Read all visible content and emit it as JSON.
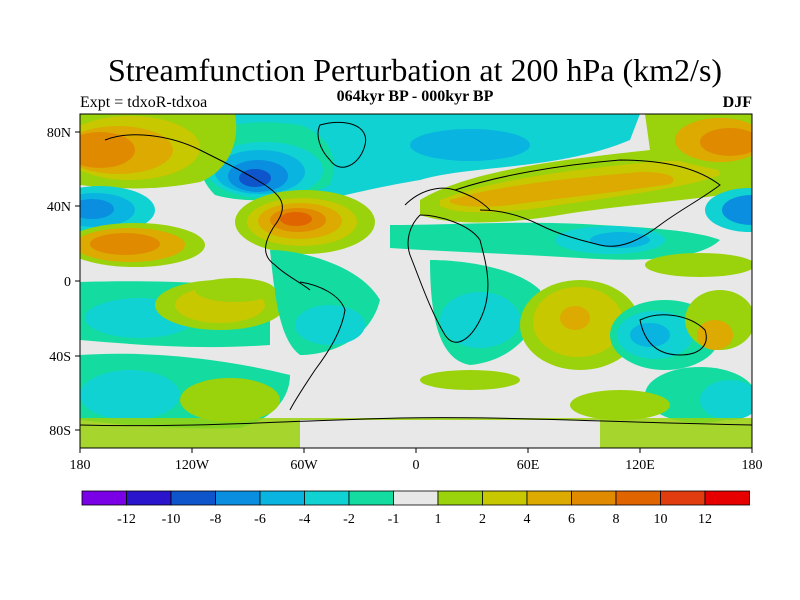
{
  "title": "Streamfunction Perturbation at 200 hPa (km2/s)",
  "subtitle": "064kyr BP - 000kyr BP",
  "left_label": "Expt = tdxoR-tdxoa",
  "right_label": "DJF",
  "map": {
    "lon_ticks": [
      "180",
      "120W",
      "60W",
      "0",
      "60E",
      "120E",
      "180"
    ],
    "lat_ticks": [
      "80N",
      "40N",
      "0",
      "40S",
      "80S"
    ]
  },
  "colorbar": {
    "labels": [
      "-12",
      "-10",
      "-8",
      "-6",
      "-4",
      "-2",
      "-1",
      "1",
      "2",
      "4",
      "6",
      "8",
      "10",
      "12"
    ],
    "colors": [
      "#7a00e6",
      "#2a14cc",
      "#0e55cc",
      "#0a8ee0",
      "#0ab4e0",
      "#10d2d2",
      "#14dca0",
      "#e8e8e8",
      "#9ad20c",
      "#c8c800",
      "#dcaa00",
      "#e08a00",
      "#e06400",
      "#e03c10",
      "#e60000"
    ]
  }
}
